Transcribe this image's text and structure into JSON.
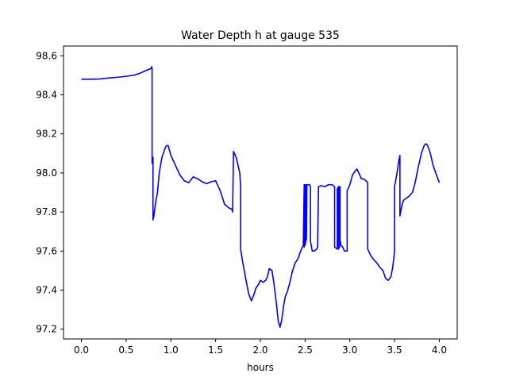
{
  "chart_data": {
    "type": "line",
    "title": "Water Depth h at gauge 535",
    "xlabel": "hours",
    "ylabel": "",
    "xlim": [
      -0.2,
      4.2
    ],
    "ylim": [
      97.15,
      98.65
    ],
    "xticks": [
      0.0,
      0.5,
      1.0,
      1.5,
      2.0,
      2.5,
      3.0,
      3.5,
      4.0
    ],
    "xtick_labels": [
      "0.0",
      "0.5",
      "1.0",
      "1.5",
      "2.0",
      "2.5",
      "3.0",
      "3.5",
      "4.0"
    ],
    "yticks": [
      97.2,
      97.4,
      97.6,
      97.8,
      98.0,
      98.2,
      98.4,
      98.6
    ],
    "ytick_labels": [
      "97.2",
      "97.4",
      "97.6",
      "97.8",
      "98.0",
      "98.2",
      "98.4",
      "98.6"
    ],
    "grid": false,
    "series": [
      {
        "color": "#0000ff",
        "x": [
          0.0,
          0.1,
          0.2,
          0.3,
          0.4,
          0.5,
          0.6,
          0.65,
          0.7,
          0.75,
          0.78,
          0.787,
          0.79,
          0.79,
          0.8,
          0.8,
          0.81,
          0.83,
          0.85,
          0.87,
          0.9,
          0.93,
          0.95,
          0.97,
          1.0,
          1.05,
          1.1,
          1.15,
          1.2,
          1.25,
          1.3,
          1.35,
          1.4,
          1.45,
          1.5,
          1.55,
          1.6,
          1.65,
          1.68,
          1.69,
          1.7,
          1.73,
          1.77,
          1.78,
          1.78,
          1.8,
          1.82,
          1.84,
          1.87,
          1.9,
          1.93,
          1.95,
          1.98,
          2.0,
          2.03,
          2.06,
          2.08,
          2.1,
          2.13,
          2.15,
          2.18,
          2.2,
          2.22,
          2.24,
          2.26,
          2.28,
          2.3,
          2.33,
          2.36,
          2.39,
          2.42,
          2.45,
          2.47,
          2.48,
          2.49,
          2.49,
          2.495,
          2.495,
          2.5,
          2.5,
          2.505,
          2.505,
          2.51,
          2.51,
          2.515,
          2.515,
          2.52,
          2.55,
          2.56,
          2.56,
          2.58,
          2.6,
          2.63,
          2.64,
          2.65,
          2.65,
          2.68,
          2.72,
          2.76,
          2.8,
          2.83,
          2.83,
          2.86,
          2.86,
          2.865,
          2.865,
          2.87,
          2.87,
          2.875,
          2.875,
          2.88,
          2.88,
          2.885,
          2.885,
          2.89,
          2.89,
          2.895,
          2.9,
          2.92,
          2.93,
          2.94,
          2.95,
          2.96,
          2.97,
          2.97,
          3.0,
          3.03,
          3.06,
          3.08,
          3.1,
          3.13,
          3.15,
          3.18,
          3.2,
          3.2,
          3.23,
          3.26,
          3.3,
          3.33,
          3.37,
          3.4,
          3.43,
          3.46,
          3.48,
          3.5,
          3.5,
          3.52,
          3.55,
          3.56,
          3.56,
          3.58,
          3.6,
          3.63,
          3.66,
          3.7,
          3.73,
          3.76,
          3.8,
          3.83,
          3.85,
          3.87,
          3.9,
          3.93,
          3.96,
          4.0
        ],
        "y": [
          98.48,
          98.48,
          98.481,
          98.486,
          98.49,
          98.495,
          98.502,
          98.51,
          98.52,
          98.53,
          98.535,
          98.545,
          98.53,
          98.05,
          98.08,
          97.76,
          97.78,
          97.85,
          97.9,
          98.0,
          98.08,
          98.12,
          98.14,
          98.14,
          98.09,
          98.04,
          97.99,
          97.96,
          97.95,
          97.98,
          97.97,
          97.955,
          97.945,
          97.955,
          97.96,
          97.91,
          97.84,
          97.82,
          97.815,
          97.8,
          98.11,
          98.08,
          98.0,
          97.93,
          97.61,
          97.55,
          97.5,
          97.45,
          97.38,
          97.345,
          97.38,
          97.41,
          97.43,
          97.45,
          97.44,
          97.45,
          97.47,
          97.51,
          97.5,
          97.44,
          97.33,
          97.24,
          97.21,
          97.25,
          97.32,
          97.37,
          97.39,
          97.44,
          97.5,
          97.54,
          97.56,
          97.6,
          97.62,
          97.63,
          97.94,
          97.62,
          97.94,
          97.63,
          97.94,
          97.63,
          97.94,
          97.64,
          97.94,
          97.65,
          97.94,
          97.66,
          97.94,
          97.94,
          97.93,
          97.65,
          97.6,
          97.6,
          97.61,
          97.62,
          97.93,
          97.93,
          97.935,
          97.93,
          97.94,
          97.94,
          97.93,
          97.62,
          97.61,
          97.92,
          97.92,
          97.62,
          97.93,
          97.62,
          97.93,
          97.61,
          97.93,
          97.62,
          97.93,
          97.62,
          97.93,
          97.64,
          97.65,
          97.63,
          97.62,
          97.61,
          97.6,
          97.6,
          97.6,
          97.6,
          97.91,
          97.94,
          97.99,
          98.01,
          98.02,
          98.0,
          97.97,
          97.97,
          97.96,
          97.95,
          97.61,
          97.58,
          97.56,
          97.54,
          97.52,
          97.5,
          97.46,
          97.45,
          97.47,
          97.52,
          97.6,
          97.93,
          97.98,
          98.07,
          98.09,
          97.78,
          97.83,
          97.86,
          97.87,
          97.88,
          97.9,
          97.95,
          98.02,
          98.1,
          98.14,
          98.15,
          98.14,
          98.1,
          98.04,
          98.0,
          97.95
        ]
      }
    ]
  }
}
